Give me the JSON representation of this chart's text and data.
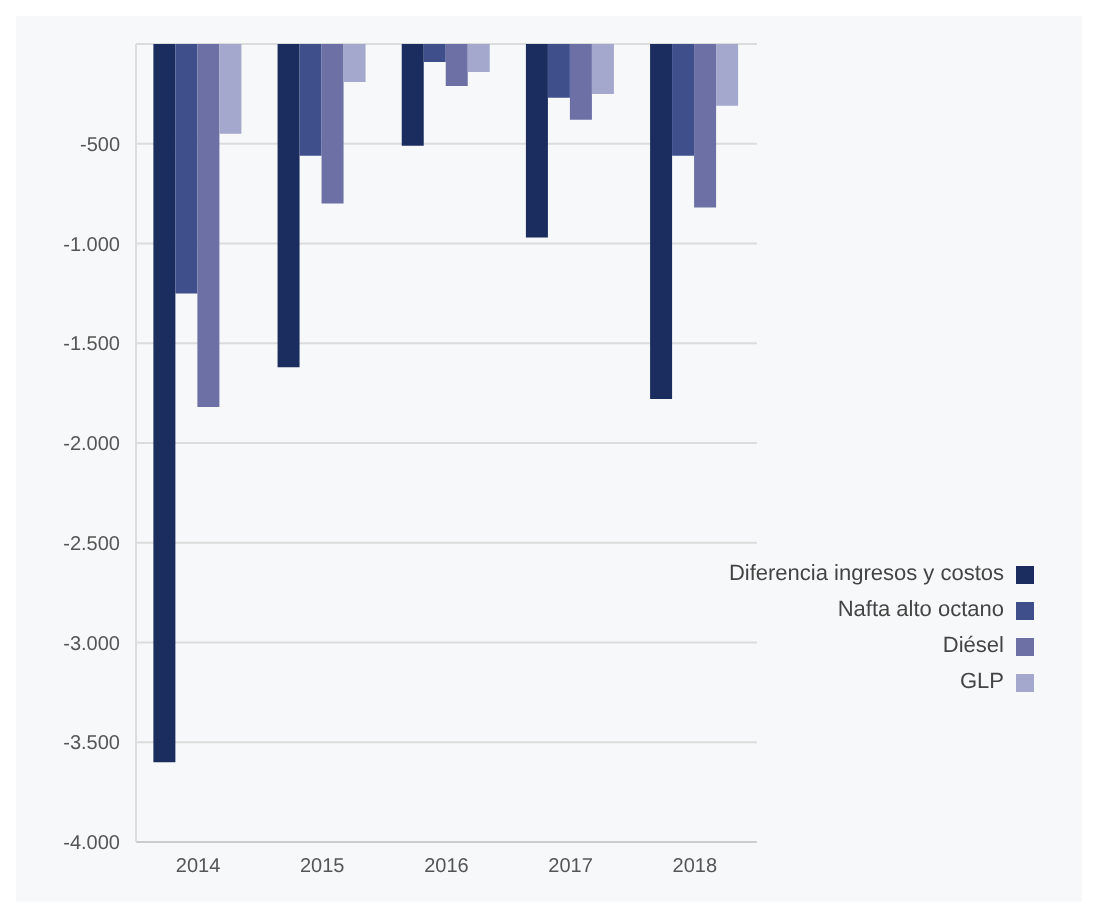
{
  "chart_data": {
    "type": "bar",
    "categories": [
      "2014",
      "2015",
      "2016",
      "2017",
      "2018"
    ],
    "series": [
      {
        "name": "Diferencia ingresos y costos",
        "color": "#1b2d5e",
        "values": [
          -3600,
          -1620,
          -510,
          -970,
          -1780
        ]
      },
      {
        "name": "Nafta alto octano",
        "color": "#3f4f8c",
        "values": [
          -1250,
          -560,
          -90,
          -270,
          -560
        ]
      },
      {
        "name": "Diésel",
        "color": "#6c70a5",
        "values": [
          -1820,
          -800,
          -210,
          -380,
          -820
        ]
      },
      {
        "name": "GLP",
        "color": "#a4a8cc",
        "values": [
          -450,
          -190,
          -140,
          -250,
          -310
        ]
      }
    ],
    "ylim": [
      -4000,
      0
    ],
    "yticks": [
      {
        "value": -4000,
        "label": "-4.000"
      },
      {
        "value": -3500,
        "label": "-3.500"
      },
      {
        "value": -3000,
        "label": "-3.000"
      },
      {
        "value": -2500,
        "label": "-2.500"
      },
      {
        "value": -2000,
        "label": "-2.000"
      },
      {
        "value": -1500,
        "label": "-1.500"
      },
      {
        "value": -1000,
        "label": "-1.000"
      },
      {
        "value": -500,
        "label": "-500"
      },
      {
        "value": 0,
        "label": null
      }
    ],
    "grid": "y",
    "legend": "right"
  }
}
